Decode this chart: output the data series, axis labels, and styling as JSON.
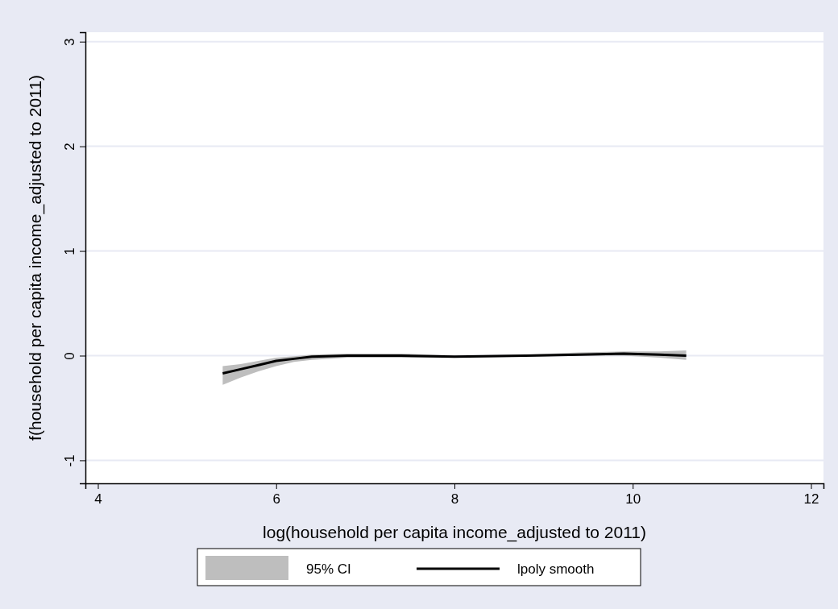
{
  "chart_data": {
    "type": "line",
    "xlabel": "log(household per capita income_adjusted to 2011)",
    "ylabel": "f(household per capita income_adjusted to 2011)",
    "x": [
      5.4,
      5.6,
      5.8,
      6.0,
      6.2,
      6.4,
      6.8,
      7.4,
      8.0,
      8.8,
      9.4,
      9.9,
      10.3,
      10.6
    ],
    "series": [
      {
        "name": "lpoly smooth",
        "color": "#000000",
        "values": [
          -0.17,
          -0.13,
          -0.09,
          -0.05,
          -0.03,
          -0.01,
          0.0,
          0.0,
          -0.01,
          0.0,
          0.01,
          0.02,
          0.01,
          0.0
        ],
        "lower": [
          -0.28,
          -0.21,
          -0.15,
          -0.1,
          -0.06,
          -0.04,
          -0.02,
          -0.02,
          -0.02,
          -0.01,
          0.0,
          0.0,
          -0.02,
          -0.04
        ],
        "upper": [
          -0.1,
          -0.08,
          -0.05,
          -0.02,
          -0.005,
          0.01,
          0.02,
          0.02,
          0.0,
          0.01,
          0.03,
          0.04,
          0.04,
          0.05
        ]
      }
    ],
    "annotations": [
      "95% CI"
    ],
    "xlim": [
      3.86,
      12.14
    ],
    "xticks": [
      4,
      6,
      8,
      10,
      12
    ],
    "ylim": [
      -1.22,
      3.09
    ],
    "yticks": [
      -1,
      0,
      1,
      2,
      3
    ],
    "grid": "y",
    "legend": "bottom",
    "line_style": "solid",
    "marker": "none"
  }
}
